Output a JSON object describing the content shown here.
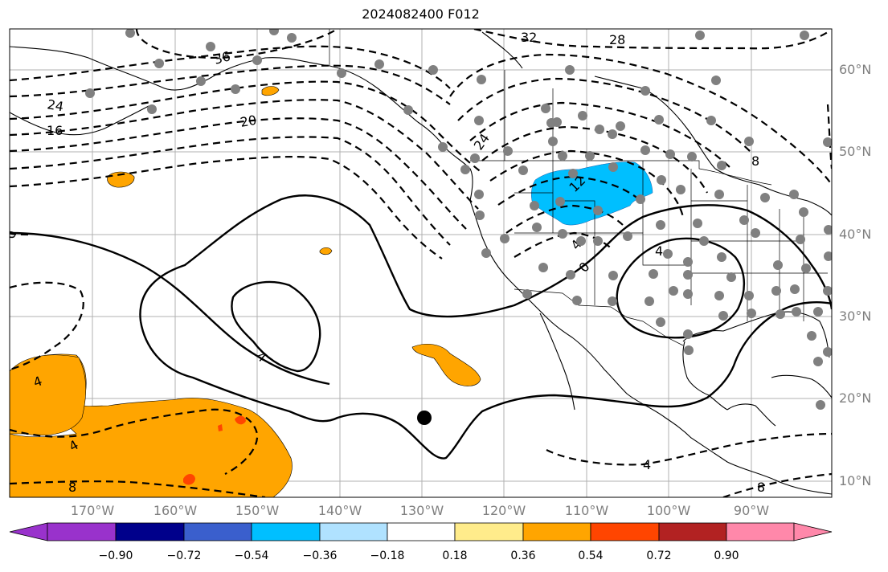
{
  "title": "2024082400 F012",
  "lat_labels": [
    "60°N",
    "50°N",
    "40°N",
    "30°N",
    "20°N",
    "10°N"
  ],
  "lon_labels": [
    "170°W",
    "160°W",
    "150°W",
    "140°W",
    "130°W",
    "120°W",
    "110°W",
    "100°W",
    "90°W"
  ],
  "contour_labels": [
    "32",
    "28",
    "36",
    "24",
    "16",
    "20",
    "24",
    "8",
    "12",
    "4",
    "4",
    "0",
    "4",
    "4",
    "4",
    "0",
    "8",
    "4",
    "8"
  ],
  "colorbar": {
    "tick_labels": [
      "−0.90",
      "−0.72",
      "−0.54",
      "−0.36",
      "−0.18",
      "0.18",
      "0.36",
      "0.54",
      "0.72",
      "0.90"
    ],
    "colors": [
      "#9932cc",
      "#00008b",
      "#3a5fcd",
      "#00bfff",
      "#b0e2ff",
      "#ffffff",
      "#ffec8b",
      "#ffa500",
      "#ff4500",
      "#b22222",
      "#ff88aa"
    ]
  },
  "shading_colors": {
    "positive": "#ffa500",
    "positive_high": "#ff4500",
    "negative": "#00bfff"
  },
  "station_marker_color": "#808080",
  "storm_marker_color": "#000000"
}
